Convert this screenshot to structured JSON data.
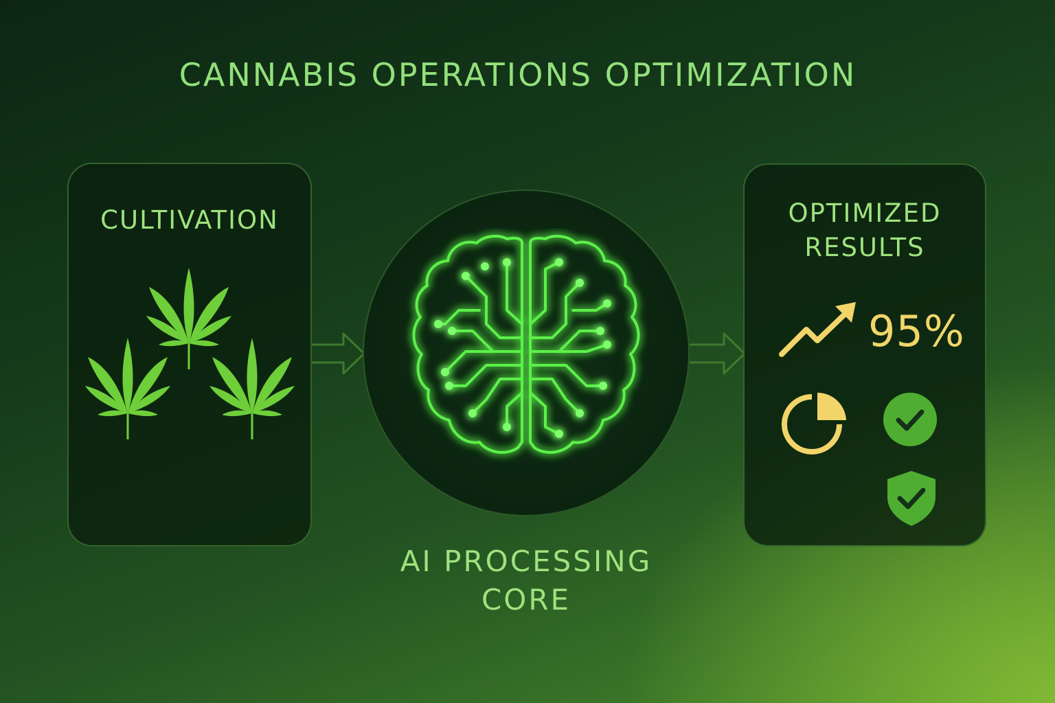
{
  "title": "CANNABIS OPERATIONS OPTIMIZATION",
  "cultivation": {
    "label": "CULTIVATION",
    "icons": [
      "cannabis-leaf-icon",
      "cannabis-leaf-icon",
      "cannabis-leaf-icon"
    ]
  },
  "core": {
    "label_line1": "AI PROCESSING",
    "label_line2": "CORE",
    "icon": "circuit-brain-icon"
  },
  "results": {
    "label_line1": "OPTIMIZED",
    "label_line2": "RESULTS",
    "percent": "95%",
    "icons": [
      "trend-up-arrow-icon",
      "pie-chart-icon",
      "check-circle-icon",
      "shield-check-icon"
    ]
  },
  "colors": {
    "text_green": "#9fe27e",
    "leaf_green": "#6fcf3a",
    "glow_green": "#5cf04a",
    "accent_yellow": "#f2d56a",
    "check_green": "#4fae32"
  }
}
